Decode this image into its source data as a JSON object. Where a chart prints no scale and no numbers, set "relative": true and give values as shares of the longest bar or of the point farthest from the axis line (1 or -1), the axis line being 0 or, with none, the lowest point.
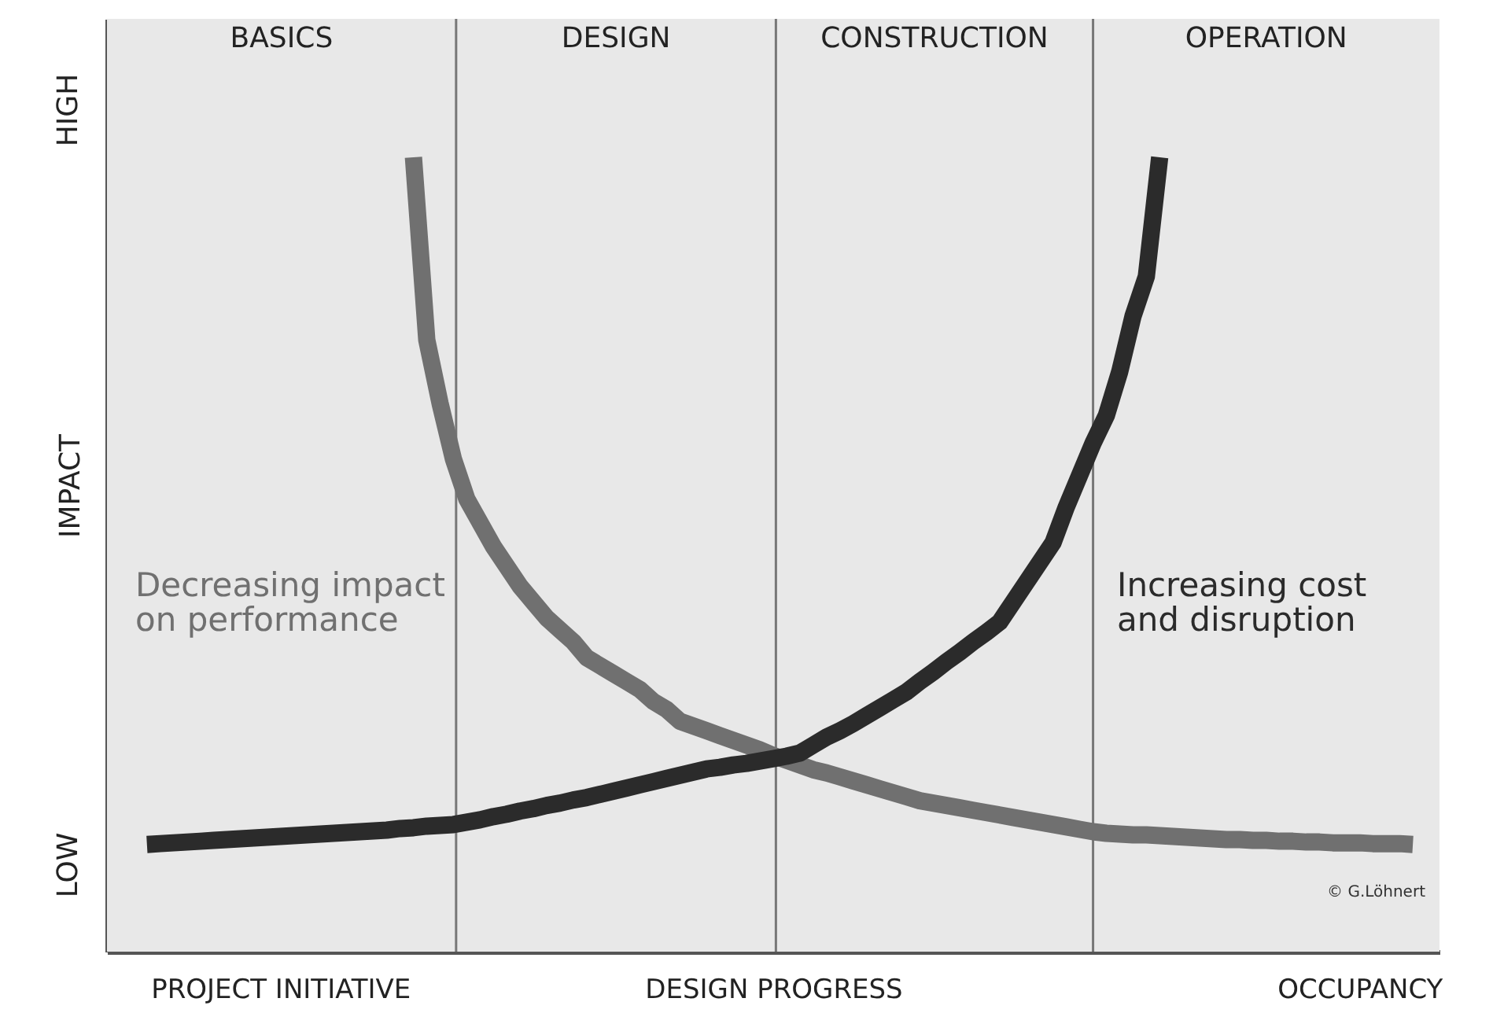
{
  "chart_data": {
    "type": "line",
    "relative": true,
    "xlabel": null,
    "ylabel": "IMPACT",
    "categories": [
      null,
      null,
      null,
      null,
      null,
      null,
      null,
      null,
      null,
      null,
      null,
      null,
      null,
      "PROJECT INITIATIVE",
      null,
      null,
      null,
      null,
      null,
      null,
      null,
      null,
      null,
      null,
      null,
      null,
      null,
      null,
      null,
      null,
      null,
      null,
      null,
      null,
      null,
      null,
      null,
      null,
      null,
      null,
      null,
      null,
      null,
      null,
      null,
      null,
      null,
      null,
      null,
      null,
      "DESIGN PROGRESS",
      null,
      null,
      null,
      null,
      null,
      null,
      null,
      null,
      null,
      null,
      null,
      null,
      null,
      null,
      null,
      null,
      null,
      null,
      null,
      null,
      null,
      null,
      null,
      null,
      null,
      null,
      null,
      null,
      null,
      null,
      null,
      null,
      null,
      null,
      null,
      null,
      null,
      null,
      null,
      null,
      null,
      null,
      null,
      "OCCUPANCY",
      null,
      null,
      null,
      null,
      null,
      null
    ],
    "series": [
      {
        "color": "#707070",
        "values": [
          null,
          null,
          null,
          null,
          null,
          null,
          null,
          null,
          null,
          null,
          null,
          null,
          null,
          null,
          null,
          null,
          null,
          null,
          null,
          null,
          null,
          null,
          null,
          1.0,
          0.77,
          0.69,
          0.62,
          0.57,
          0.54,
          0.51,
          0.485,
          0.46,
          0.44,
          0.42,
          0.405,
          0.39,
          0.37,
          0.36,
          0.35,
          0.34,
          0.33,
          0.315,
          0.305,
          0.29,
          0.284,
          0.278,
          0.272,
          0.266,
          0.26,
          0.254,
          0.247,
          0.241,
          0.235,
          0.229,
          0.225,
          0.22,
          0.215,
          0.21,
          0.205,
          0.2,
          0.195,
          0.19,
          0.187,
          0.184,
          0.181,
          0.178,
          0.175,
          0.172,
          0.169,
          0.166,
          0.163,
          0.16,
          0.157,
          0.154,
          0.151,
          0.149,
          0.148,
          0.147,
          0.147,
          0.146,
          0.145,
          0.144,
          0.143,
          0.142,
          0.141,
          0.141,
          0.14,
          0.14,
          0.139,
          0.139,
          0.138,
          0.138,
          0.137,
          0.137,
          0.137,
          0.136,
          0.136,
          0.136,
          0.135,
          null,
          null
        ]
      },
      {
        "color": "#2b2b2b",
        "values": [
          null,
          null,
          null,
          0.135,
          0.136,
          0.137,
          0.138,
          0.139,
          0.14,
          0.141,
          0.142,
          0.143,
          0.144,
          0.145,
          0.146,
          0.147,
          0.148,
          0.149,
          0.15,
          0.151,
          0.152,
          0.153,
          0.155,
          0.156,
          0.158,
          0.159,
          0.16,
          0.163,
          0.166,
          0.17,
          0.173,
          0.177,
          0.18,
          0.184,
          0.187,
          0.191,
          0.194,
          0.198,
          0.202,
          0.206,
          0.21,
          0.214,
          0.218,
          0.222,
          0.226,
          0.23,
          0.232,
          0.235,
          0.237,
          0.24,
          0.243,
          0.246,
          0.25,
          0.26,
          0.27,
          0.278,
          0.287,
          0.297,
          0.307,
          0.317,
          0.327,
          0.34,
          0.352,
          0.365,
          0.377,
          0.39,
          0.402,
          0.415,
          0.44,
          0.465,
          0.49,
          0.515,
          0.56,
          0.6,
          0.64,
          0.675,
          0.73,
          0.8,
          0.85,
          1.0,
          null,
          null,
          null,
          null,
          null,
          null,
          null,
          null,
          null,
          null,
          null,
          null,
          null,
          null,
          null,
          null,
          null,
          null,
          null,
          null,
          null
        ]
      }
    ],
    "annotations": [
      "BASICS",
      "DESIGN",
      "CONSTRUCTION",
      "OPERATION",
      "Decreasing impact\non performance",
      "Increasing cost\nand disruption",
      "LOW",
      "HIGH",
      "© G.Löhnert"
    ]
  }
}
